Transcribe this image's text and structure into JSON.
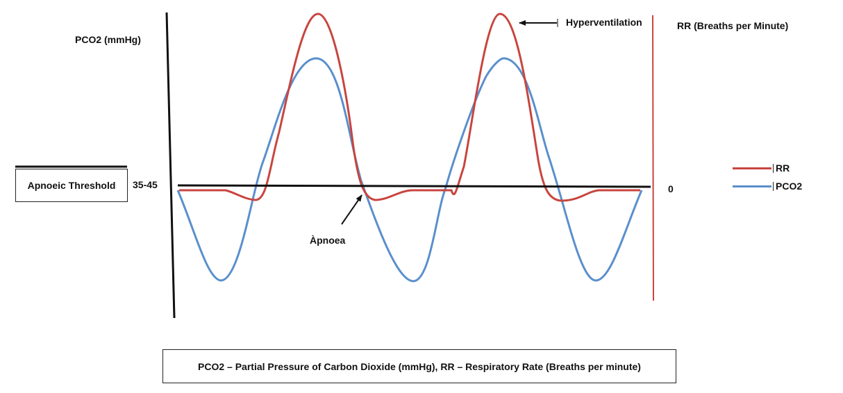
{
  "labels": {
    "pco2_axis": "PCO2 (mmHg)",
    "rr_axis": "RR (Breaths per Minute)",
    "hyperventilation": "Hyperventilation",
    "apnoea": "Àpnoea",
    "apnoeic_threshold": "Apnoeic Threshold",
    "threshold_value": "35-45",
    "rr_zero": "0",
    "caption": "PCO2 – Partial Pressure of Carbon Dioxide (mmHg), RR – Respiratory Rate (Breaths per minute)"
  },
  "legend": [
    {
      "label": "RR",
      "color": "#c8453f"
    },
    {
      "label": "PCO2",
      "color": "#5a8fcc"
    }
  ],
  "colors": {
    "rr": "#c8453f",
    "pco2": "#5a8fcc",
    "axis": "#111111",
    "rr_axis_line": "#c8453f"
  }
}
